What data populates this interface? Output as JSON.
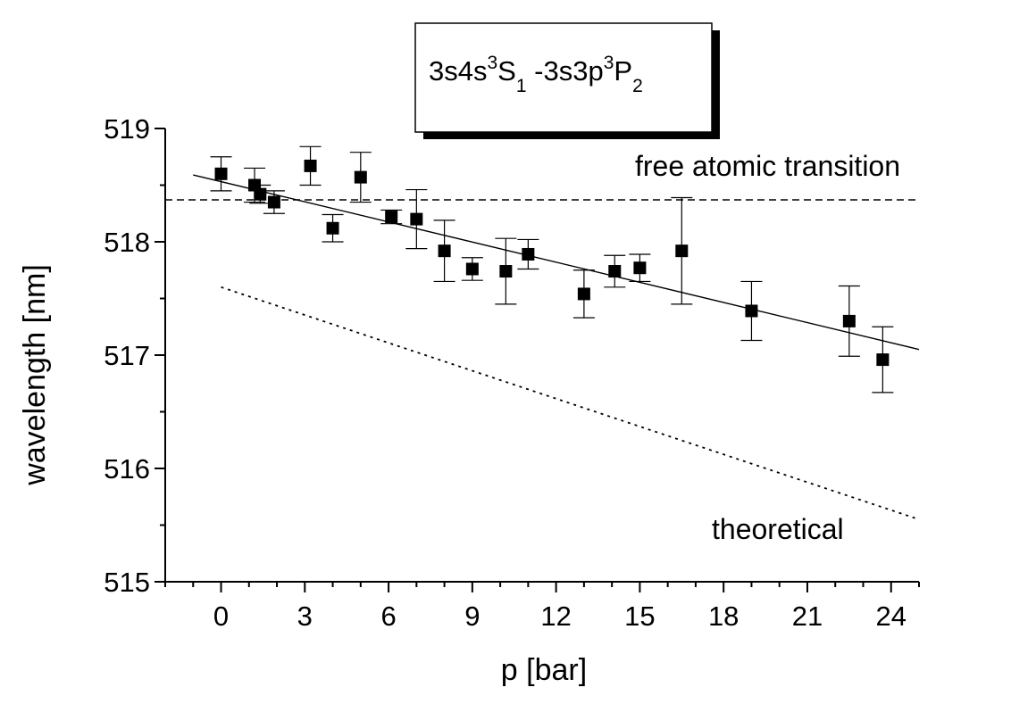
{
  "chart_data": {
    "type": "scatter",
    "xlabel": "p [bar]",
    "ylabel": "wavelength [nm]",
    "xlim": [
      -2,
      25
    ],
    "ylim": [
      515,
      519
    ],
    "x_ticks": [
      0,
      3,
      6,
      9,
      12,
      15,
      18,
      21,
      24
    ],
    "y_ticks": [
      515,
      516,
      517,
      518,
      519
    ],
    "x_tick_labels": [
      "0",
      "3",
      "6",
      "9",
      "12",
      "15",
      "18",
      "21",
      "24"
    ],
    "y_tick_labels": [
      "515",
      "516",
      "517",
      "518",
      "519"
    ],
    "legend": {
      "placement": "top-center",
      "parts": [
        {
          "text": "3s4s",
          "role": "base"
        },
        {
          "text": "3",
          "role": "sup"
        },
        {
          "text": "S",
          "role": "base"
        },
        {
          "text": "1",
          "role": "sub"
        },
        {
          "text": " -3s3p",
          "role": "base"
        },
        {
          "text": "3",
          "role": "sup"
        },
        {
          "text": "P",
          "role": "base"
        },
        {
          "text": "2",
          "role": "sub"
        }
      ]
    },
    "annotations": {
      "reference": "free atomic transition",
      "theory": "theoretical"
    },
    "series": [
      {
        "kind": "measured",
        "points": [
          {
            "x": 0.0,
            "y": 518.6,
            "err": 0.15
          },
          {
            "x": 1.2,
            "y": 518.5,
            "err": 0.15
          },
          {
            "x": 1.4,
            "y": 518.42,
            "err": 0.08
          },
          {
            "x": 1.9,
            "y": 518.35,
            "err": 0.1
          },
          {
            "x": 3.2,
            "y": 518.67,
            "err": 0.17
          },
          {
            "x": 4.0,
            "y": 518.12,
            "err": 0.12
          },
          {
            "x": 5.0,
            "y": 518.57,
            "err": 0.22
          },
          {
            "x": 6.1,
            "y": 518.22,
            "err": 0.06
          },
          {
            "x": 7.0,
            "y": 518.2,
            "err": 0.26
          },
          {
            "x": 8.0,
            "y": 517.92,
            "err": 0.27
          },
          {
            "x": 9.0,
            "y": 517.76,
            "err": 0.1
          },
          {
            "x": 10.2,
            "y": 517.74,
            "err": 0.29
          },
          {
            "x": 11.0,
            "y": 517.89,
            "err": 0.13
          },
          {
            "x": 13.0,
            "y": 517.54,
            "err": 0.21
          },
          {
            "x": 14.1,
            "y": 517.74,
            "err": 0.14
          },
          {
            "x": 15.0,
            "y": 517.77,
            "err": 0.12
          },
          {
            "x": 16.5,
            "y": 517.92,
            "err": 0.47
          },
          {
            "x": 19.0,
            "y": 517.39,
            "err": 0.26
          },
          {
            "x": 22.5,
            "y": 517.3,
            "err": 0.31
          },
          {
            "x": 23.7,
            "y": 516.96,
            "err": 0.29
          }
        ]
      },
      {
        "kind": "fit",
        "style": "solid",
        "x": [
          -1,
          25
        ],
        "y": [
          518.59,
          517.05
        ]
      },
      {
        "kind": "reference",
        "style": "dashed",
        "y": 518.37
      },
      {
        "kind": "theory",
        "style": "dotted",
        "x": [
          0,
          25
        ],
        "y": [
          517.6,
          515.55
        ]
      }
    ],
    "grid": false
  }
}
